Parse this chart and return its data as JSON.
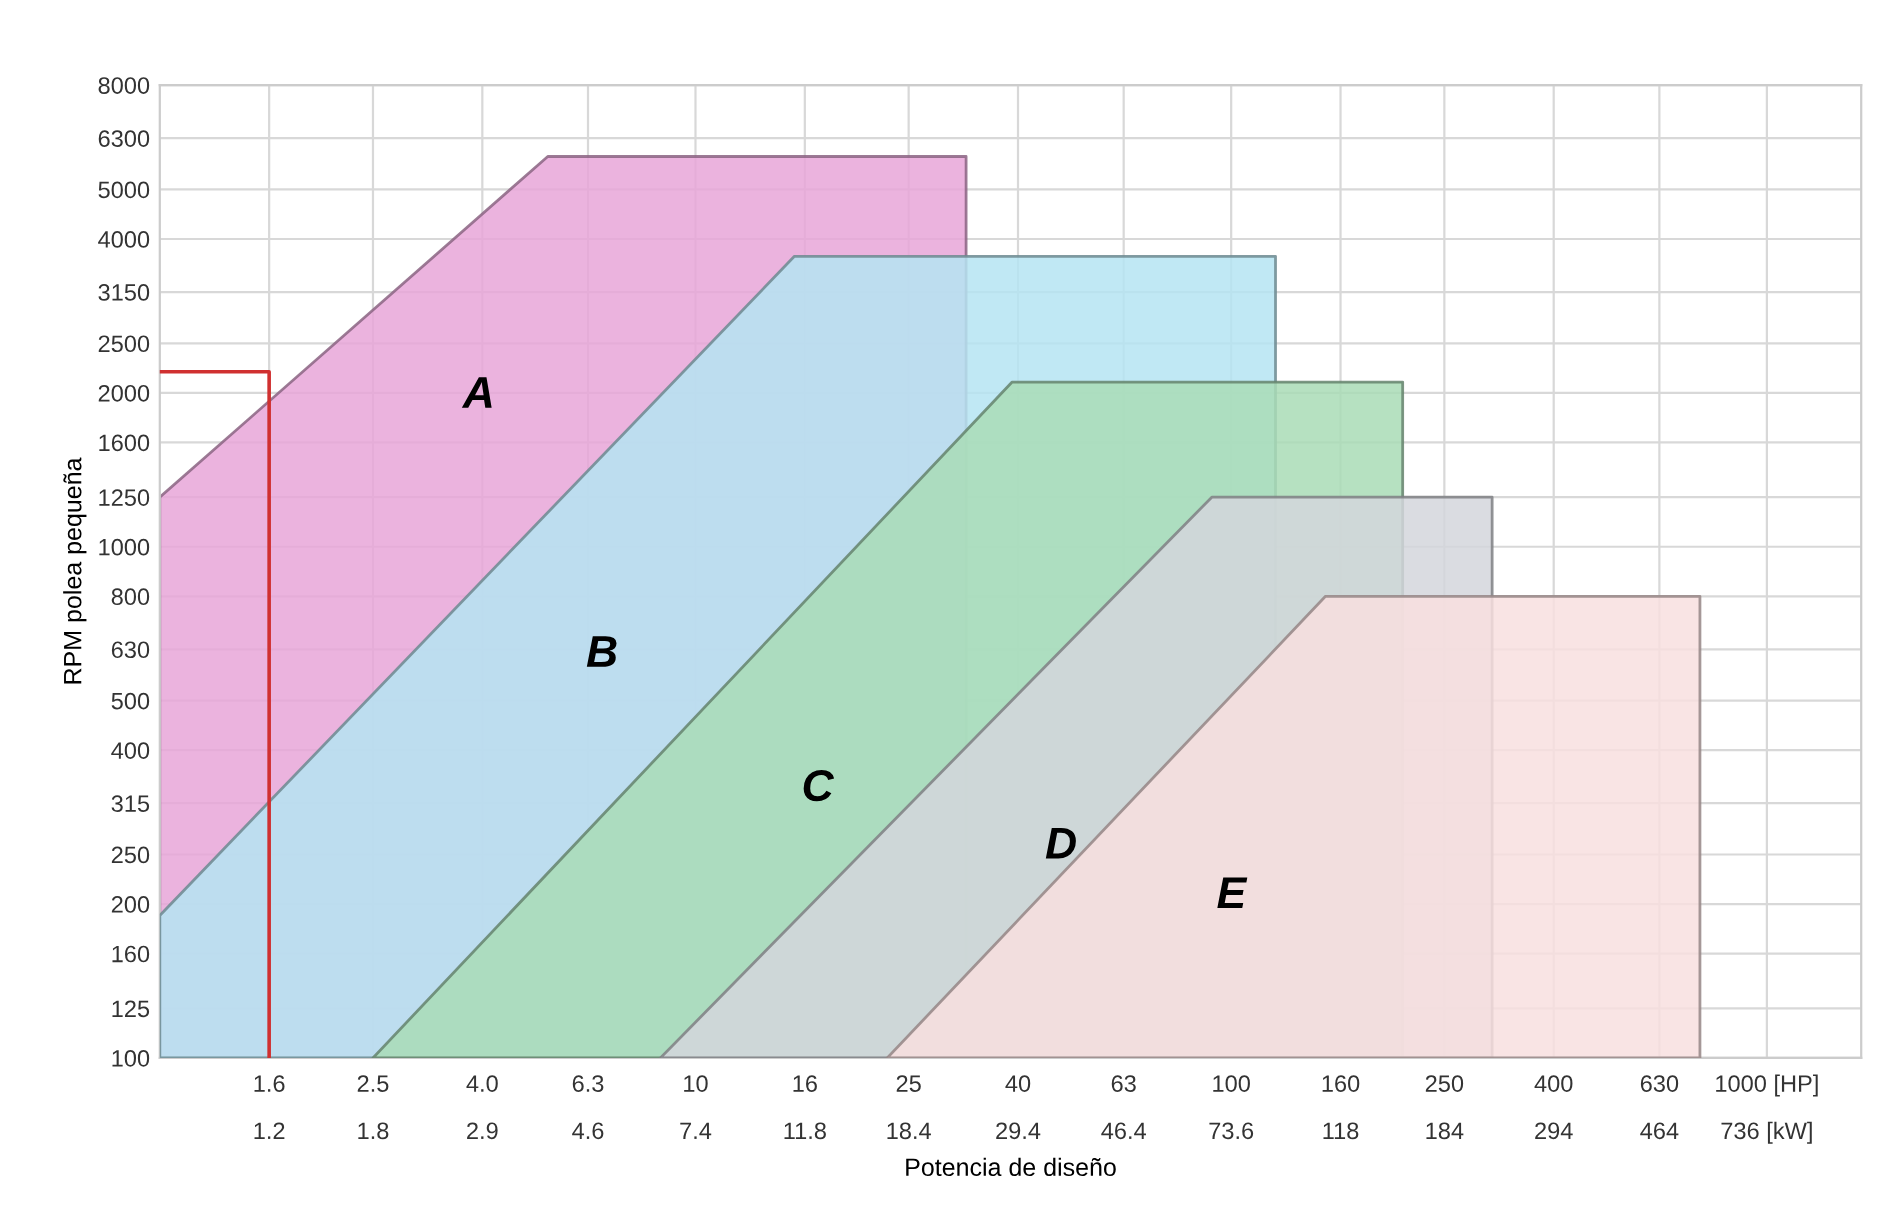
{
  "chart_data": {
    "type": "area",
    "xlabel": "Potencia de diseño",
    "ylabel": "RPM polea pequeña",
    "log": "xy",
    "grid": true,
    "xlim": [
      1,
      1500
    ],
    "ylim": [
      100,
      8000
    ],
    "xticks": [
      1.6,
      2.5,
      {
        "value": 4,
        "label": "4.0"
      },
      6.3,
      10,
      16,
      25,
      40,
      63,
      100,
      160,
      250,
      400,
      630,
      {
        "value": 1000,
        "label": "1000 [HP]"
      }
    ],
    "annotations": [
      "1.2",
      "1.8",
      "2.9",
      "4.6",
      "7.4",
      "11.8",
      "18.4",
      "29.4",
      "46.4",
      "73.6",
      "118",
      "184",
      "294",
      "464",
      "736 [kW]"
    ],
    "yticks": [
      100,
      125,
      160,
      200,
      250,
      315,
      400,
      500,
      630,
      800,
      1000,
      1250,
      1600,
      2000,
      2500,
      3150,
      4000,
      5000,
      6300,
      8000
    ],
    "series": [
      {
        "name": "A",
        "color": "#e7a6d8",
        "x": [
          1,
          5.3,
          32,
          32
        ],
        "values": [
          1250,
          5800,
          5800,
          100
        ]
      },
      {
        "name": "B",
        "color": "#b5e4f2",
        "x": [
          1,
          15.3,
          121,
          121
        ],
        "values": [
          190,
          3700,
          3700,
          100
        ]
      },
      {
        "name": "C",
        "color": "#a9dcb6",
        "x": [
          2.5,
          39,
          209,
          209
        ],
        "values": [
          100,
          2100,
          2100,
          100
        ]
      },
      {
        "name": "D",
        "color": "#d3d6dc",
        "x": [
          8.6,
          92,
          307,
          307
        ],
        "values": [
          100,
          1250,
          1250,
          100
        ]
      },
      {
        "name": "E",
        "color": "#f8dfdf",
        "x": [
          22.8,
          150,
          750,
          750
        ],
        "values": [
          100,
          800,
          800,
          100
        ]
      },
      {
        "type": "line",
        "color": "#d03030",
        "x": [
          1,
          1.6,
          1.6
        ],
        "values": [
          2200,
          2200,
          100
        ]
      }
    ]
  }
}
